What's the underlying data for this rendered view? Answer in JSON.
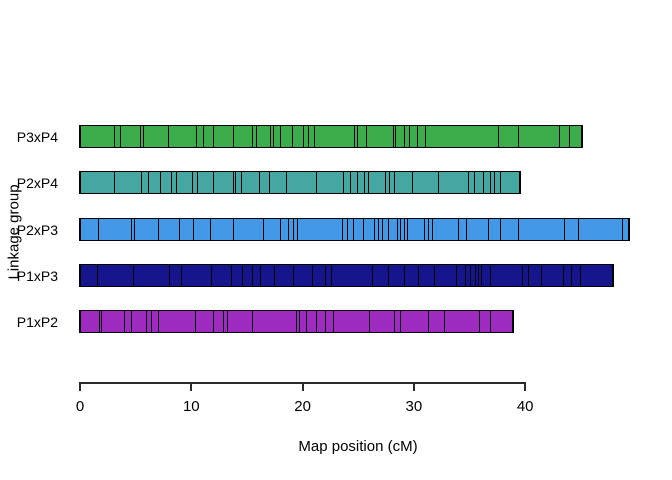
{
  "figure": {
    "xlabel": "Map position (cM)",
    "ylabel": "Linkage group",
    "background": "#ffffff",
    "axis_color": "#2b2b2b",
    "marker_color": "#000000"
  },
  "chart_data": {
    "type": "linkage-map",
    "title": "",
    "xlabel": "Map position (cM)",
    "ylabel": "Linkage group",
    "x_ticks": [
      0,
      10,
      20,
      30,
      40
    ],
    "xlim": [
      0,
      49.5
    ],
    "grid": false,
    "legend": false,
    "groups": [
      {
        "name": "P3xP4",
        "color": "#3cad4a",
        "length_cM": 45.3,
        "markers": [
          0,
          3.1,
          3.6,
          5.4,
          5.7,
          7.9,
          10.5,
          11.1,
          12.0,
          13.8,
          15.5,
          15.9,
          17.1,
          17.4,
          18.0,
          19.1,
          20.1,
          20.6,
          21.1,
          24.7,
          25.0,
          25.8,
          28.2,
          28.4,
          29.2,
          29.7,
          30.4,
          31.1,
          37.7,
          39.5,
          43.2,
          44.1,
          45.3
        ]
      },
      {
        "name": "P2xP4",
        "color": "#46a6a2",
        "length_cM": 39.7,
        "markers": [
          0,
          3.1,
          5.5,
          6.1,
          7.2,
          8.2,
          8.7,
          10.1,
          10.6,
          12.0,
          13.8,
          14.0,
          14.5,
          16.2,
          17.1,
          18.6,
          21.3,
          23.7,
          24.4,
          25.0,
          25.6,
          26.0,
          27.5,
          27.9,
          28.3,
          30.0,
          32.3,
          35.0,
          35.6,
          36.4,
          37.0,
          37.4,
          37.9,
          39.7
        ]
      },
      {
        "name": "P2xP3",
        "color": "#4498e8",
        "length_cM": 49.5,
        "markers": [
          0,
          1.6,
          4.6,
          4.9,
          7.0,
          8.9,
          10.2,
          11.7,
          13.8,
          16.5,
          18.0,
          18.8,
          19.2,
          19.6,
          23.6,
          24.1,
          24.6,
          25.5,
          26.5,
          26.9,
          27.2,
          27.8,
          28.6,
          28.9,
          29.2,
          29.5,
          31.0,
          31.4,
          31.7,
          34.1,
          34.8,
          36.8,
          37.9,
          39.5,
          43.6,
          44.9,
          48.9,
          49.5
        ]
      },
      {
        "name": "P1xP3",
        "color": "#16168c",
        "length_cM": 48.1,
        "markers": [
          0,
          1.5,
          4.8,
          8.0,
          9.1,
          11.8,
          13.6,
          14.6,
          15.5,
          16.2,
          17.5,
          19.2,
          20.9,
          22.1,
          22.6,
          26.3,
          27.8,
          29.2,
          30.5,
          31.9,
          33.9,
          34.7,
          35.2,
          35.6,
          35.9,
          36.2,
          37.0,
          39.9,
          40.4,
          41.6,
          43.6,
          44.3,
          45.1,
          48.1
        ]
      },
      {
        "name": "P1xP2",
        "color": "#9d2bc0",
        "length_cM": 39.1,
        "markers": [
          0,
          1.7,
          1.9,
          4.0,
          4.6,
          6.0,
          6.4,
          7.0,
          10.4,
          12.0,
          12.9,
          13.3,
          15.5,
          19.5,
          19.8,
          20.4,
          21.3,
          22.1,
          22.8,
          26.1,
          28.3,
          28.9,
          31.4,
          32.9,
          36.0,
          37.0,
          39.1
        ]
      }
    ]
  }
}
